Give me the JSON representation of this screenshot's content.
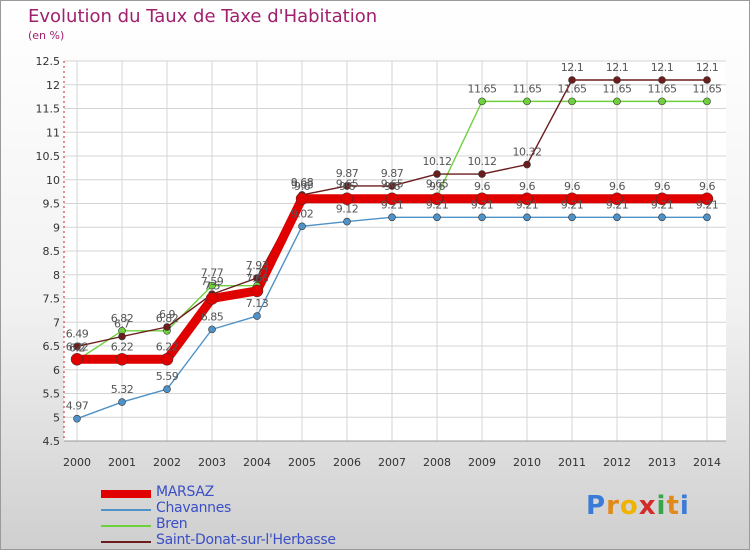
{
  "header": {
    "title": "Evolution du Taux de Taxe d'Habitation",
    "unit": "(en %)"
  },
  "logo": {
    "letters": [
      "P",
      "r",
      "o",
      "x",
      "i",
      "t",
      "i"
    ],
    "colors": [
      "#3b7bd8",
      "#e08a1a",
      "#f0b400",
      "#d42a2a",
      "#3aa64a",
      "#e08a1a",
      "#3b7bd8"
    ]
  },
  "chart_data": {
    "type": "line",
    "categories": [
      "2000",
      "2001",
      "2002",
      "2003",
      "2004",
      "2005",
      "2006",
      "2007",
      "2008",
      "2009",
      "2010",
      "2011",
      "2012",
      "2013",
      "2014"
    ],
    "y_ticks": [
      "4.5",
      "5",
      "5.5",
      "6",
      "6.5",
      "7",
      "7.5",
      "8",
      "8.5",
      "9",
      "9.5",
      "10",
      "10.5",
      "11",
      "11.5",
      "12",
      "12.5"
    ],
    "ylim": [
      4.5,
      12.5
    ],
    "grid": true,
    "legend_position": "bottom-left",
    "series": [
      {
        "name": "MARSAZ",
        "color": "#e00000",
        "values": [
          6.22,
          6.22,
          6.22,
          7.5,
          7.66,
          9.6,
          9.6,
          9.6,
          9.6,
          9.6,
          9.6,
          9.6,
          9.6,
          9.6,
          9.6
        ]
      },
      {
        "name": "Chavannes",
        "color": "#4f92c7",
        "values": [
          4.97,
          5.32,
          5.59,
          6.85,
          7.13,
          9.02,
          9.12,
          9.21,
          9.21,
          9.21,
          9.21,
          9.21,
          9.21,
          9.21,
          9.21
        ]
      },
      {
        "name": "Bren",
        "color": "#6fd03e",
        "values": [
          6.2,
          6.82,
          6.82,
          7.77,
          7.77,
          9.63,
          9.65,
          9.65,
          9.65,
          11.65,
          11.65,
          11.65,
          11.65,
          11.65,
          11.65
        ]
      },
      {
        "name": "Saint-Donat-sur-l'Herbasse",
        "color": "#6b1d1d",
        "values": [
          6.49,
          6.7,
          6.9,
          7.59,
          7.93,
          9.68,
          9.87,
          9.87,
          10.12,
          10.12,
          10.32,
          12.1,
          12.1,
          12.1,
          12.1
        ]
      }
    ],
    "point_labels": {
      "MARSAZ": [
        "6.22",
        "6.22",
        "6.22",
        "7.5",
        "7.66",
        "9.6",
        "9.6",
        "9.6",
        "9.6",
        "9.6",
        "9.6",
        "9.6",
        "9.6",
        "9.6",
        "9.6"
      ],
      "Chavannes": [
        "4.97",
        "5.32",
        "5.59",
        "6.85",
        "7.13",
        "9.02",
        "9.12",
        "9.21",
        "9.21",
        "9.21",
        "9.21",
        "9.21",
        "9.21",
        "9.21",
        "9.21"
      ],
      "Bren": [
        "6.2",
        "6.82",
        "6.82",
        "7.77",
        "7.77",
        "9.63",
        "9.65",
        "9.65",
        "9.65",
        "11.65",
        "11.65",
        "11.65",
        "11.65",
        "11.65",
        "11.65"
      ],
      "Saint-Donat-sur-l'Herbasse": [
        "6.49",
        "6.7",
        "6.9",
        "7.59",
        "7.93",
        "9.68",
        "9.87",
        "9.87",
        "10.12",
        "10.12",
        "10.32",
        "12.1",
        "12.1",
        "12.1",
        "12.1"
      ]
    }
  }
}
